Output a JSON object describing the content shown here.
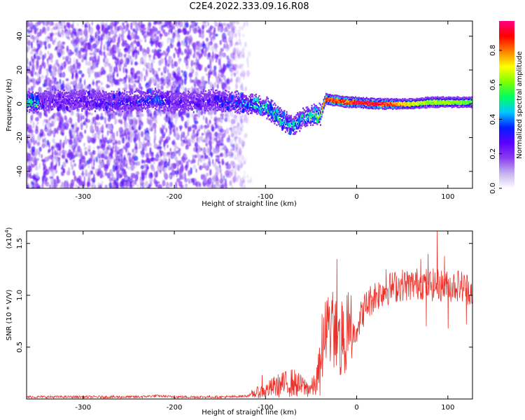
{
  "title": "C2E4.2022.333.09.16.R08",
  "chart_data": [
    {
      "type": "heatmap",
      "xlabel": "Height of straight line (km)",
      "ylabel": "Frequency (Hz)",
      "xlim": [
        -362,
        127
      ],
      "ylim": [
        -50,
        49
      ],
      "xticks": [
        -300,
        -200,
        -100,
        0,
        100
      ],
      "xtick_labels": [
        "-300",
        "-200",
        "-100",
        "0",
        "100"
      ],
      "yticks": [
        -40,
        -20,
        0,
        20,
        40
      ],
      "ytick_labels": [
        "-40",
        "-20",
        "0",
        "20",
        "40"
      ],
      "grid": false,
      "description_of_values": "normalized spectral amplitude on rainbow scale",
      "clutter_region": {
        "x": [
          -362,
          -130
        ],
        "y": [
          -50,
          49
        ],
        "amplitude": [
          0.05,
          0.25
        ]
      },
      "signal_trace": [
        {
          "x": -350,
          "y": 2,
          "amp": 0.3
        },
        {
          "x": -300,
          "y": 2,
          "amp": 0.3
        },
        {
          "x": -250,
          "y": 1,
          "amp": 0.35
        },
        {
          "x": -222,
          "y": 3,
          "amp": 0.45
        },
        {
          "x": -200,
          "y": 1,
          "amp": 0.3
        },
        {
          "x": -160,
          "y": 2,
          "amp": 0.3
        },
        {
          "x": -130,
          "y": 1,
          "amp": 0.45
        },
        {
          "x": -110,
          "y": -1,
          "amp": 0.55
        },
        {
          "x": -100,
          "y": -2,
          "amp": 0.6
        },
        {
          "x": -90,
          "y": -6,
          "amp": 0.6
        },
        {
          "x": -80,
          "y": -10,
          "amp": 0.55
        },
        {
          "x": -70,
          "y": -13,
          "amp": 0.5
        },
        {
          "x": -60,
          "y": -8,
          "amp": 0.6
        },
        {
          "x": -50,
          "y": -7,
          "amp": 0.65
        },
        {
          "x": -40,
          "y": -6,
          "amp": 0.7
        },
        {
          "x": -35,
          "y": 3,
          "amp": 0.85
        },
        {
          "x": -25,
          "y": 2,
          "amp": 0.9
        },
        {
          "x": -10,
          "y": 1,
          "amp": 0.85
        },
        {
          "x": 0,
          "y": 1,
          "amp": 0.95
        },
        {
          "x": 20,
          "y": 0,
          "amp": 0.95
        },
        {
          "x": 40,
          "y": 0,
          "amp": 0.85
        },
        {
          "x": 60,
          "y": 0,
          "amp": 0.7
        },
        {
          "x": 80,
          "y": 1,
          "amp": 0.65
        },
        {
          "x": 100,
          "y": 1,
          "amp": 0.65
        },
        {
          "x": 127,
          "y": 1,
          "amp": 0.6
        }
      ],
      "colorbar": {
        "label": "Normalized spectral amplitude",
        "range": [
          0,
          0.97
        ],
        "ticks": [
          0.0,
          0.2,
          0.4,
          0.6,
          0.8
        ],
        "tick_labels": [
          "0.0",
          "0.2",
          "0.4",
          "0.6",
          "0.8"
        ],
        "stops": [
          "#ffffff",
          "#c4b0f0",
          "#8a3cf0",
          "#5a00ff",
          "#0020ff",
          "#00c8ff",
          "#00ff60",
          "#80ff00",
          "#ffff00",
          "#ff8000",
          "#ff0000",
          "#ff0080"
        ]
      }
    },
    {
      "type": "line",
      "xlabel": "Height of straight line (km)",
      "ylabel": "SNR (10 * V/V)",
      "multiplier_label": "(x10",
      "multiplier_exp": "4",
      "multiplier_close": ")",
      "xlim": [
        -362,
        127
      ],
      "ylim": [
        0,
        1.62
      ],
      "xticks": [
        -300,
        -200,
        -100,
        0,
        100
      ],
      "xtick_labels": [
        "-300",
        "-200",
        "-100",
        "0",
        "100"
      ],
      "yticks": [
        0.5,
        1.0,
        1.5
      ],
      "ytick_labels": [
        "0.5",
        "1.0",
        "1.5"
      ],
      "grid": false,
      "color": "#e8322a",
      "series": [
        {
          "x": [
            -362,
            -340,
            -320,
            -300,
            -280,
            -260,
            -240,
            -220,
            -200,
            -180,
            -160,
            -140,
            -120,
            -110,
            -100,
            -90,
            -80,
            -70,
            -60,
            -50,
            -45,
            -40,
            -35,
            -30,
            -25,
            -20,
            -15,
            -10,
            -5,
            0,
            5,
            10,
            15,
            20,
            25,
            30,
            40,
            50,
            60,
            70,
            80,
            90,
            100,
            110,
            127
          ],
          "values": [
            0.02,
            0.02,
            0.02,
            0.02,
            0.02,
            0.02,
            0.02,
            0.03,
            0.02,
            0.02,
            0.02,
            0.02,
            0.03,
            0.06,
            0.08,
            0.12,
            0.14,
            0.16,
            0.12,
            0.1,
            0.14,
            0.3,
            0.55,
            0.65,
            0.6,
            0.55,
            0.5,
            0.55,
            0.6,
            0.7,
            0.8,
            0.9,
            0.95,
            1.0,
            1.02,
            1.05,
            1.08,
            1.1,
            1.1,
            1.12,
            1.1,
            1.1,
            1.08,
            1.1,
            1.05
          ],
          "spikes": [
            {
              "x": -22,
              "y": 1.35
            },
            {
              "x": -33,
              "y": 0.95
            },
            {
              "x": -16,
              "y": 0.9
            },
            {
              "x": -104,
              "y": 0.23
            },
            {
              "x": -82,
              "y": 0.25
            },
            {
              "x": 32,
              "y": 1.25
            },
            {
              "x": 70,
              "y": 1.35
            },
            {
              "x": 78,
              "y": 1.4
            },
            {
              "x": 88,
              "y": 1.62
            },
            {
              "x": 96,
              "y": 1.38
            },
            {
              "x": 76,
              "y": 0.7
            },
            {
              "x": 120,
              "y": 0.72
            },
            {
              "x": 100,
              "y": 0.68
            }
          ]
        }
      ]
    }
  ]
}
